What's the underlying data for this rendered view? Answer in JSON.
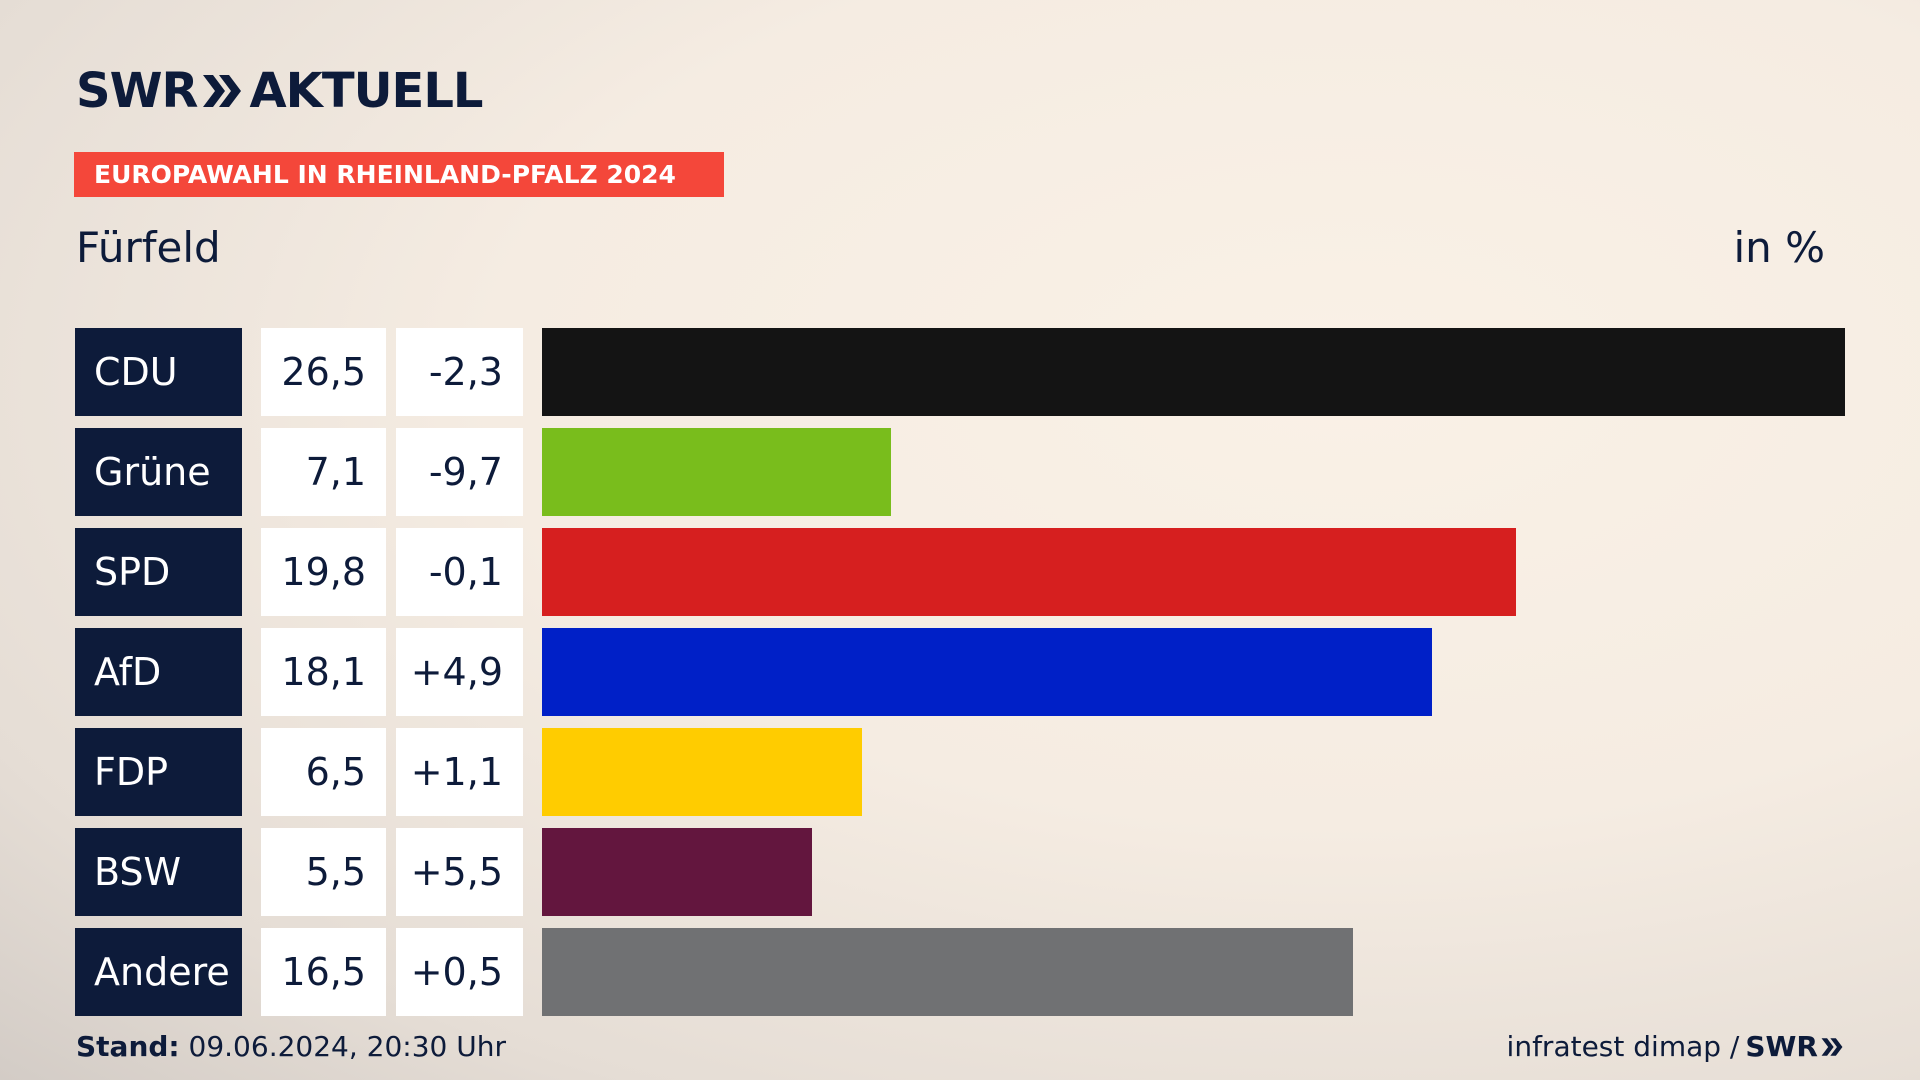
{
  "brand": {
    "swr": "SWR",
    "aktuell": "AKTUELL"
  },
  "banner": "EUROPAWAHL IN RHEINLAND-PFALZ 2024",
  "place": "Fürfeld",
  "unit": "in %",
  "colors": {
    "navy": "#0d1b3a",
    "banner_red": "#f4473a"
  },
  "chart_data": {
    "type": "bar",
    "orientation": "horizontal",
    "categories": [
      "CDU",
      "Grüne",
      "SPD",
      "AfD",
      "FDP",
      "BSW",
      "Andere"
    ],
    "values": [
      26.5,
      7.1,
      19.8,
      18.1,
      6.5,
      5.5,
      16.5
    ],
    "values_label": [
      "26,5",
      "7,1",
      "19,8",
      "18,1",
      "6,5",
      "5,5",
      "16,5"
    ],
    "diff_label": [
      "-2,3",
      "-9,7",
      "-0,1",
      "+4,9",
      "+1,1",
      "+5,5",
      "+0,5"
    ],
    "colors": [
      "#141414",
      "#79bd1c",
      "#d61f1f",
      "#0020c7",
      "#ffcc00",
      "#63163e",
      "#707173"
    ],
    "xlim": [
      0,
      26.5
    ]
  },
  "footer": {
    "stand_label": "Stand:",
    "stand_value": "09.06.2024, 20:30 Uhr",
    "source": "infratest dimap /",
    "source_brand": "SWR"
  }
}
